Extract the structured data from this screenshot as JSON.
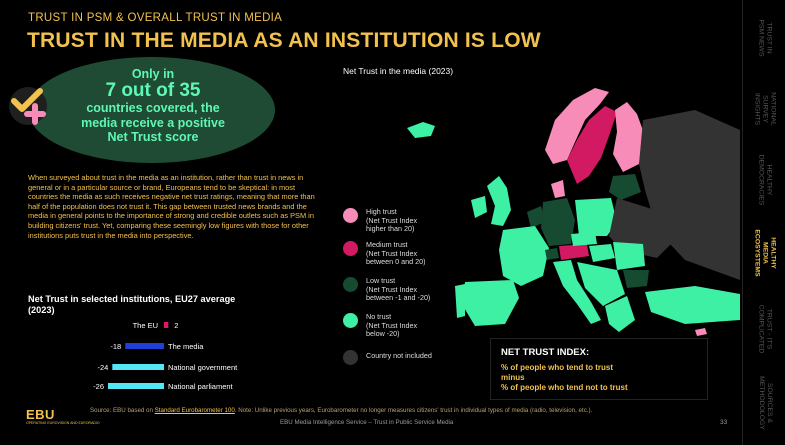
{
  "header": {
    "kicker": "TRUST IN PSM & OVERALL TRUST IN MEDIA",
    "title": "TRUST IN THE MEDIA AS AN INSTITUTION IS LOW"
  },
  "callout": {
    "line1": "Only in",
    "line2": "7 out of 35",
    "line3": "countries covered, the",
    "line4": "media receive a positive",
    "line5": "Net Trust score"
  },
  "body_text": "When surveyed about trust in the media as an institution, rather than trust in news in general or in a particular source or brand, Europeans tend to be skeptical: in most countries the media as such receives negative net trust ratings, meaning that more than half of the population does not trust it. This gap between trusted news brands and the media in general points to the importance of strong and credible outlets such as PSM in building citizens' trust. Yet, comparing these seemingly low figures with those for other institutions puts trust in the media into perspective.",
  "chart_data": {
    "type": "bar",
    "title": "Net Trust in selected institutions, EU27 average (2023)",
    "categories": [
      "The EU",
      "The media",
      "National government",
      "National parliament"
    ],
    "values": [
      2,
      -18,
      -24,
      -26
    ],
    "colors": [
      "#e2156b",
      "#1f3fd6",
      "#54e6f5",
      "#54e6f5"
    ]
  },
  "map": {
    "title": "Net Trust in the media (2023)",
    "colors": {
      "high": "#f78cb8",
      "medium": "#d11a61",
      "low": "#164a31",
      "none": "#3ef0a3",
      "not_included": "#333333"
    }
  },
  "legend": [
    {
      "label": "High trust\n(Net Trust Index\nhigher than 20)",
      "color": "#f78cb8"
    },
    {
      "label": "Medium trust\n(Net Trust Index\nbetween 0 and 20)",
      "color": "#d11a61"
    },
    {
      "label": "Low trust\n(Net Trust Index\nbetween -1 and -20)",
      "color": "#164a31"
    },
    {
      "label": "No trust\n(Net Trust Index\nbelow -20)",
      "color": "#3ef0a3"
    },
    {
      "label": "Country not included",
      "color": "#333333"
    }
  ],
  "net_trust": {
    "heading": "NET TRUST INDEX:",
    "line1": "% of people who tend to trust",
    "line2": "minus",
    "line3": "% of people who tend not to trust"
  },
  "sidebar": [
    {
      "label": "TRUST IN\nPSM NEWS",
      "active": false
    },
    {
      "label": "NATIONAL SURVEY\nINSIGHTS",
      "active": false
    },
    {
      "label": "HEALTHY\nDEMOCRACIES",
      "active": false
    },
    {
      "label": "HEALTHY MEDIA\nECOSYSTEMS",
      "active": true
    },
    {
      "label": "TRUST - IT'S\nCOMPLICATED",
      "active": false
    },
    {
      "label": "SOURCES &\nMETHODOLOGY",
      "active": false
    }
  ],
  "footer": {
    "source_prefix": "Source: EBU based on ",
    "source_link": "Standard Eurobarometer 100",
    "source_suffix": ". Note: Unlike previous years, Eurobarometer no longer measures citizens' trust in individual types of media (radio, television, etc.).",
    "service": "EBU Media Intelligence Service – Trust in Public Service Media",
    "page": "33",
    "logo": "EBU",
    "logo_sub": "OPERATING EUROVISION AND EURORADIO"
  }
}
